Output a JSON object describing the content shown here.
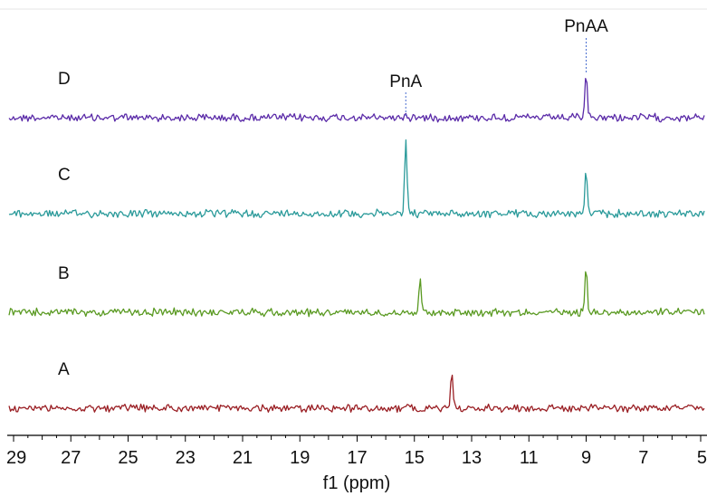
{
  "chart_data": {
    "type": "line",
    "title": "",
    "xlabel": "f1 (ppm)",
    "ylabel": "",
    "xlim": [
      29,
      5
    ],
    "x_reversed": true,
    "grid": false,
    "xticks": [
      29,
      27,
      25,
      23,
      21,
      19,
      17,
      15,
      13,
      11,
      9,
      7,
      5
    ],
    "xtick_labels": [
      "29",
      "27",
      "25",
      "23",
      "21",
      "19",
      "17",
      "15",
      "13",
      "11",
      "9",
      "7",
      "5"
    ],
    "series": [
      {
        "name": "D",
        "color": "#5a2aa8",
        "peaks": [
          {
            "x": 15.3,
            "height": 0.05
          },
          {
            "x": 9.0,
            "height": 0.55
          }
        ]
      },
      {
        "name": "C",
        "color": "#2a9a9a",
        "peaks": [
          {
            "x": 15.3,
            "height": 0.95
          },
          {
            "x": 9.0,
            "height": 0.55
          }
        ]
      },
      {
        "name": "B",
        "color": "#5a9a22",
        "peaks": [
          {
            "x": 14.8,
            "height": 0.4
          },
          {
            "x": 9.0,
            "height": 0.62
          }
        ]
      },
      {
        "name": "A",
        "color": "#9a1f24",
        "peaks": [
          {
            "x": 13.7,
            "height": 0.45
          }
        ]
      }
    ],
    "annotations": [
      {
        "text": "PnA",
        "x": 15.3
      },
      {
        "text": "PnAA",
        "x": 9.0
      }
    ]
  }
}
